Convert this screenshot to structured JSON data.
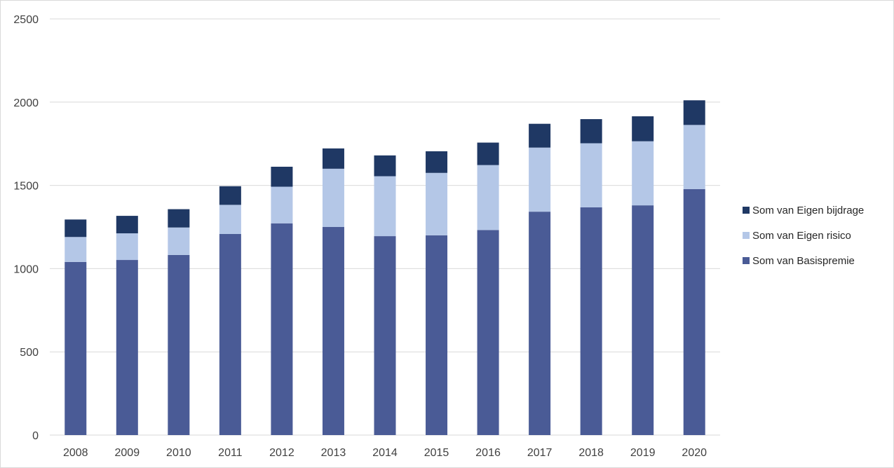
{
  "chart_data": {
    "type": "bar",
    "stacked": true,
    "title": "",
    "xlabel": "",
    "ylabel": "",
    "categories": [
      "2008",
      "2009",
      "2010",
      "2011",
      "2012",
      "2013",
      "2014",
      "2015",
      "2016",
      "2017",
      "2018",
      "2019",
      "2020"
    ],
    "series": [
      {
        "name": "Som van Basispremie",
        "color": "#4a5b96",
        "values": [
          1040,
          1052,
          1082,
          1208,
          1272,
          1250,
          1195,
          1200,
          1232,
          1342,
          1368,
          1380,
          1478
        ]
      },
      {
        "name": "Som van Eigen risico",
        "color": "#b4c7e7",
        "values": [
          150,
          160,
          165,
          175,
          220,
          350,
          360,
          375,
          390,
          385,
          385,
          385,
          385
        ]
      },
      {
        "name": "Som van Eigen bijdrage",
        "color": "#1f3864",
        "values": [
          105,
          105,
          110,
          112,
          120,
          122,
          125,
          130,
          135,
          143,
          145,
          150,
          148
        ]
      }
    ],
    "ylim": [
      0,
      2500
    ],
    "yticks": [
      "0",
      "500",
      "1000",
      "1500",
      "2000",
      "2500"
    ],
    "grid": true,
    "legend": {
      "position": "right",
      "order": [
        "Som van Eigen bijdrage",
        "Som van Eigen risico",
        "Som van Basispremie"
      ]
    },
    "colors": {
      "gridline": "#d9d9d9",
      "axis_text": "#404040",
      "frame": "#d9d9d9"
    }
  }
}
